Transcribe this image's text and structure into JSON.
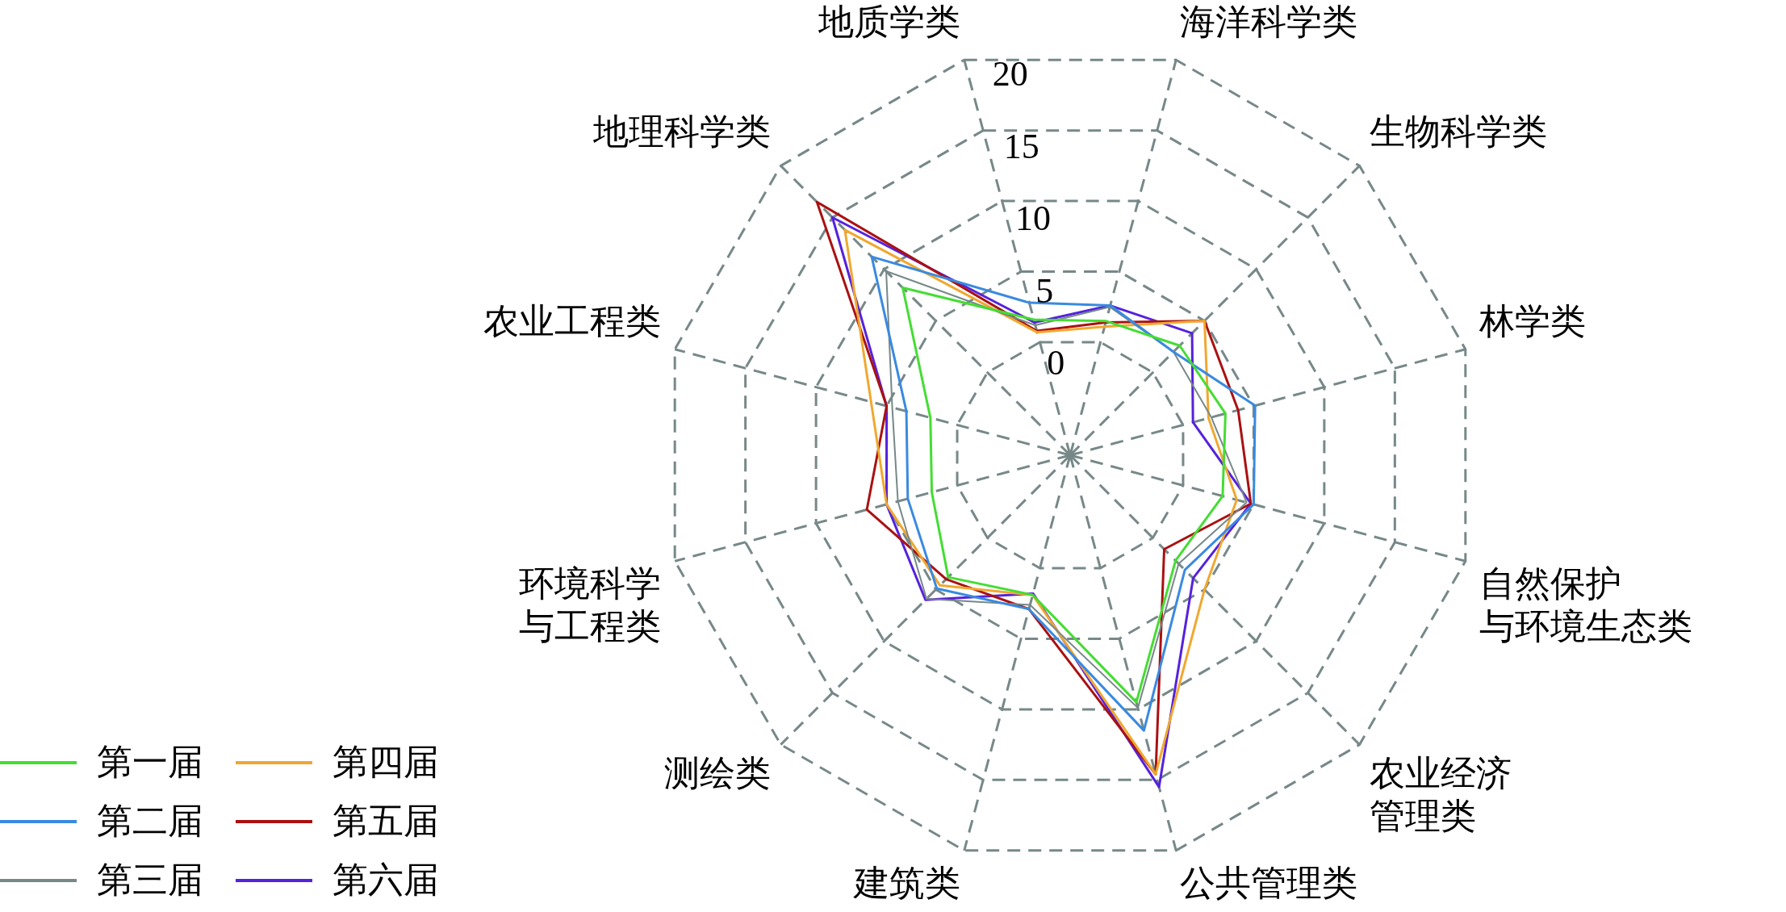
{
  "chart_data": {
    "type": "radar",
    "categories": [
      "地质学类",
      "海洋科学类",
      "生物科学类",
      "林学类",
      "自然保护与环境生态类",
      "农业经济管理类",
      "公共管理类",
      "建筑类",
      "测绘类",
      "环境科学与工程类",
      "农业工程类",
      "地理科学类"
    ],
    "series": [
      {
        "name": "第一届",
        "color": "#44dd33",
        "values": [
          1.6,
          1.5,
          2.6,
          3.0,
          2.8,
          2.2,
          9.5,
          1.9,
          3.8,
          1.8,
          1.9,
          8.2
        ]
      },
      {
        "name": "第二届",
        "color": "#3a8ae0",
        "values": [
          2.8,
          2.6,
          2.0,
          5.1,
          5.0,
          3.1,
          11.5,
          2.9,
          4.9,
          3.5,
          3.6,
          11.2
        ]
      },
      {
        "name": "第三届",
        "color": "#778888",
        "values": [
          1.2,
          2.5,
          2.0,
          2.0,
          4.5,
          2.5,
          9.9,
          2.6,
          5.9,
          4.2,
          4.6,
          9.8
        ]
      },
      {
        "name": "第四届",
        "color": "#f0a830",
        "values": [
          0.7,
          1.1,
          5.0,
          1.8,
          3.8,
          5.0,
          14.6,
          1.9,
          4.6,
          5.0,
          6.1,
          13.8
        ]
      },
      {
        "name": "第五届",
        "color": "#aa1111",
        "values": [
          0.8,
          1.4,
          5.0,
          3.9,
          4.8,
          1.1,
          14.6,
          2.9,
          4.0,
          6.4,
          5.0,
          16.5
        ]
      },
      {
        "name": "第六届",
        "color": "#5522dd",
        "values": [
          1.4,
          2.6,
          3.8,
          0.7,
          4.8,
          3.9,
          15.5,
          1.8,
          6.0,
          5.0,
          5.0,
          15.0
        ]
      }
    ],
    "ylim": [
      -8,
      20
    ],
    "yticks": [
      0,
      5,
      10,
      15,
      20
    ],
    "grid": true,
    "legend": "bottom left",
    "line_style": "solid",
    "marker": "none"
  }
}
